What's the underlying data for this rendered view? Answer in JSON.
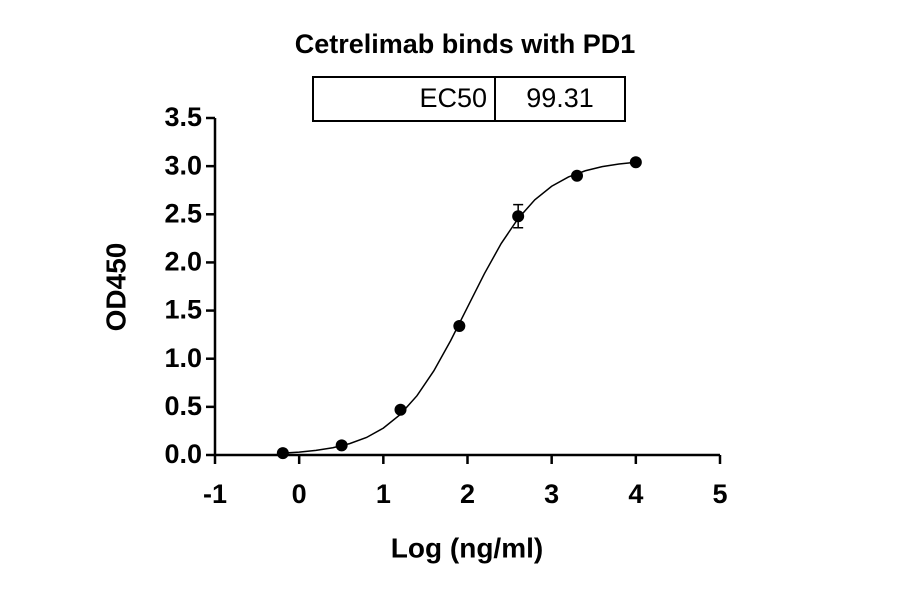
{
  "chart_data": {
    "type": "scatter",
    "title": "Cetrelimab binds with PD1",
    "ec50": {
      "label": "EC50",
      "value": "99.31"
    },
    "x_label": "Log (ng/ml)",
    "y_label": "OD450",
    "x": [
      -0.194,
      0.505,
      1.204,
      1.903,
      2.602,
      3.301,
      4.0
    ],
    "values": [
      0.02,
      0.1,
      0.47,
      1.34,
      2.48,
      2.9,
      3.04
    ],
    "errors": [
      null,
      null,
      null,
      null,
      0.12,
      null,
      null
    ],
    "fit": {
      "x": [
        -0.2,
        0,
        0.2,
        0.4,
        0.6,
        0.8,
        1.0,
        1.2,
        1.4,
        1.6,
        1.8,
        2.0,
        2.2,
        2.4,
        2.6,
        2.8,
        3.0,
        3.2,
        3.4,
        3.6,
        3.8,
        4.0
      ],
      "values": [
        0.019,
        0.03,
        0.048,
        0.075,
        0.118,
        0.182,
        0.279,
        0.42,
        0.616,
        0.874,
        1.188,
        1.535,
        1.882,
        2.196,
        2.454,
        2.651,
        2.791,
        2.888,
        2.952,
        2.995,
        3.022,
        3.04
      ]
    },
    "color": "#000000",
    "xlim": [
      -1,
      5
    ],
    "xticks": [
      -1,
      0,
      1,
      2,
      3,
      4,
      5
    ],
    "ylim": [
      0,
      3.5
    ],
    "yticks": [
      {
        "value": 0,
        "label": "0.0"
      },
      {
        "value": 0.5,
        "label": "0.5"
      },
      {
        "value": 1,
        "label": "1.0"
      },
      {
        "value": 1.5,
        "label": "1.5"
      },
      {
        "value": 2,
        "label": "2.0"
      },
      {
        "value": 2.5,
        "label": "2.5"
      },
      {
        "value": 3,
        "label": "3.0"
      },
      {
        "value": 3.5,
        "label": "3.5"
      }
    ]
  }
}
